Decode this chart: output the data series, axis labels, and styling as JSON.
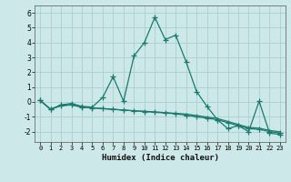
{
  "xlabel": "Humidex (Indice chaleur)",
  "bg_color": "#cce8e8",
  "line_color": "#1a7a6e",
  "grid_color": "#aacfcf",
  "xlim": [
    -0.5,
    23.5
  ],
  "ylim": [
    -2.7,
    6.5
  ],
  "xticks": [
    0,
    1,
    2,
    3,
    4,
    5,
    6,
    7,
    8,
    9,
    10,
    11,
    12,
    13,
    14,
    15,
    16,
    17,
    18,
    19,
    20,
    21,
    22,
    23
  ],
  "yticks": [
    -2,
    -1,
    0,
    1,
    2,
    3,
    4,
    5,
    6
  ],
  "s1_x": [
    0,
    1,
    2,
    3,
    4,
    5,
    6,
    7,
    8,
    9,
    10,
    11,
    12,
    13,
    14,
    15,
    16,
    17,
    18,
    19,
    20,
    21,
    22,
    23
  ],
  "s1_y": [
    0.1,
    -0.5,
    -0.2,
    -0.1,
    -0.3,
    -0.35,
    0.3,
    1.7,
    0.05,
    3.1,
    4.0,
    5.7,
    4.2,
    4.5,
    2.7,
    0.7,
    -0.3,
    -1.2,
    -1.8,
    -1.6,
    -2.0,
    0.05,
    -2.1,
    -2.2
  ],
  "s2_x": [
    0,
    1,
    2,
    3,
    4,
    5,
    6,
    7,
    8,
    9,
    10,
    11,
    12,
    13,
    14,
    15,
    16,
    17,
    18,
    19,
    20,
    21,
    22,
    23
  ],
  "s2_y": [
    0.1,
    -0.5,
    -0.25,
    -0.2,
    -0.35,
    -0.4,
    -0.45,
    -0.5,
    -0.55,
    -0.6,
    -0.65,
    -0.7,
    -0.75,
    -0.8,
    -0.9,
    -1.0,
    -1.1,
    -1.2,
    -1.4,
    -1.6,
    -1.8,
    -1.85,
    -2.0,
    -2.1
  ],
  "s3_x": [
    0,
    1,
    2,
    3,
    4,
    5,
    6,
    7,
    8,
    9,
    10,
    11,
    12,
    13,
    14,
    15,
    16,
    17,
    18,
    19,
    20,
    21,
    22,
    23
  ],
  "s3_y": [
    0.1,
    -0.5,
    -0.25,
    -0.2,
    -0.35,
    -0.4,
    -0.45,
    -0.5,
    -0.55,
    -0.6,
    -0.63,
    -0.67,
    -0.72,
    -0.77,
    -0.82,
    -0.92,
    -1.02,
    -1.12,
    -1.32,
    -1.52,
    -1.72,
    -1.77,
    -1.92,
    -2.02
  ]
}
